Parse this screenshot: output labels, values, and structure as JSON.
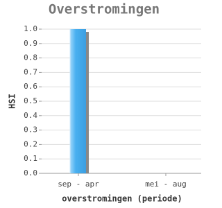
{
  "chart_data": {
    "type": "bar",
    "title": "Overstromingen",
    "x_label": "overstromingen (periode)",
    "y_label": "HSI",
    "categories": [
      "sep - apr",
      "mei - aug"
    ],
    "values": [
      1.0,
      0
    ],
    "color": "#4ab0f0",
    "ylim": [
      0,
      1.0
    ],
    "yticks": [
      {
        "value": 0,
        "label": "0.0"
      },
      0.1,
      0.2,
      0.3,
      0.4,
      0.5,
      0.6,
      0.7,
      0.8,
      0.9,
      {
        "value": 1.0,
        "label": "1.0"
      }
    ],
    "grid": true
  }
}
